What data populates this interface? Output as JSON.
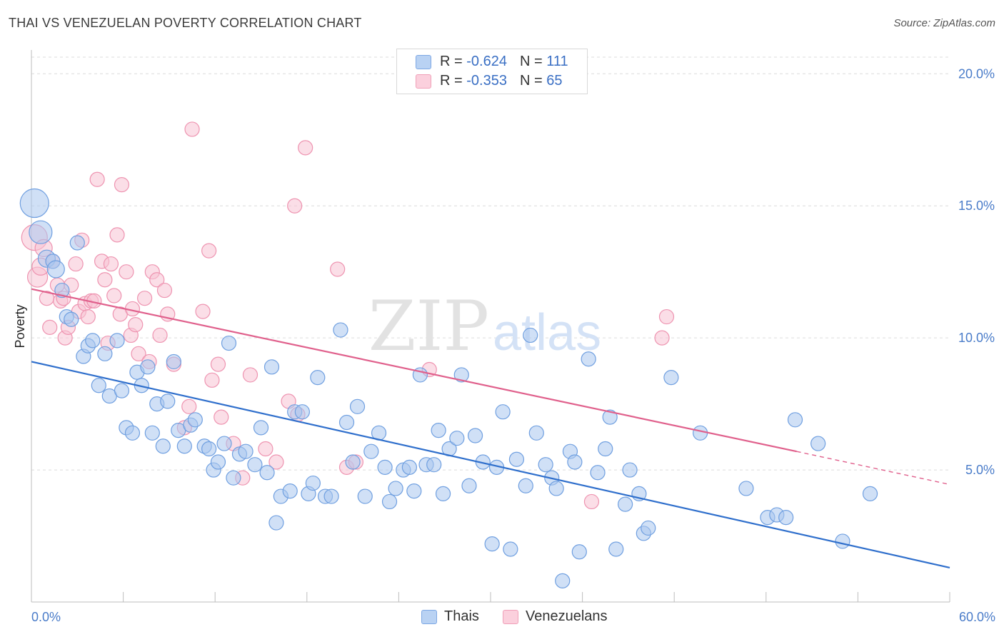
{
  "header": {
    "title": "THAI VS VENEZUELAN POVERTY CORRELATION CHART",
    "source": "Source: ZipAtlas.com"
  },
  "watermark": {
    "zip": "ZIP",
    "atlas": "atlas"
  },
  "legend": {
    "rows": [
      {
        "r_label": "R = ",
        "r_value": "-0.624",
        "n_label": "N = ",
        "n_value": "111",
        "color": "#8fb5e8"
      },
      {
        "r_label": "R = ",
        "r_value": "-0.353",
        "n_label": "N = ",
        "n_value": "65",
        "color": "#f4a8c0"
      }
    ]
  },
  "bottom_legend": {
    "thais": "Thais",
    "venezuelans": "Venezuelans"
  },
  "colors": {
    "thai_fill": "#a9c6ef",
    "thai_stroke": "#6f9fe0",
    "thai_line": "#2f6fcc",
    "ven_fill": "#f8c3d3",
    "ven_stroke": "#ee93b0",
    "ven_line": "#e0608c",
    "grid": "#dcdcdc",
    "tick_label": "#4a7cc9"
  },
  "chart_data": {
    "type": "scatter",
    "title": "THAI VS VENEZUELAN POVERTY CORRELATION CHART",
    "ylabel": "Poverty",
    "xlim": [
      0,
      60
    ],
    "ylim": [
      0,
      20.9
    ],
    "x_tick_labels": [
      {
        "value": 0,
        "label": "0.0%"
      },
      {
        "value": 60,
        "label": "60.0%"
      }
    ],
    "y_tick_labels": [
      {
        "value": 5,
        "label": "5.0%"
      },
      {
        "value": 10,
        "label": "10.0%"
      },
      {
        "value": 15,
        "label": "15.0%"
      },
      {
        "value": 20,
        "label": "20.0%"
      }
    ],
    "grid": true,
    "series": [
      {
        "name": "Thais",
        "trend": {
          "x": [
            0,
            60
          ],
          "y": [
            9.1,
            1.3
          ]
        },
        "points": [
          [
            0.2,
            15.1,
            1
          ],
          [
            0.6,
            14.0,
            0.8
          ],
          [
            1.0,
            13.0,
            0.6
          ],
          [
            1.4,
            12.9,
            0.5
          ],
          [
            1.6,
            12.6,
            0.6
          ],
          [
            2.0,
            11.8,
            0.5
          ],
          [
            2.3,
            10.8,
            0.5
          ],
          [
            2.6,
            10.7,
            0.5
          ],
          [
            3.0,
            13.6,
            0.5
          ],
          [
            3.4,
            9.3,
            0.5
          ],
          [
            3.7,
            9.7,
            0.5
          ],
          [
            4.0,
            9.9,
            0.5
          ],
          [
            4.4,
            8.2,
            0.5
          ],
          [
            4.8,
            9.4,
            0.5
          ],
          [
            5.1,
            7.8,
            0.5
          ],
          [
            5.6,
            9.9,
            0.5
          ],
          [
            5.9,
            8.0,
            0.5
          ],
          [
            6.2,
            6.6,
            0.5
          ],
          [
            6.6,
            6.4,
            0.5
          ],
          [
            6.9,
            8.7,
            0.5
          ],
          [
            7.2,
            8.2,
            0.5
          ],
          [
            7.6,
            8.9,
            0.5
          ],
          [
            7.9,
            6.4,
            0.5
          ],
          [
            8.2,
            7.5,
            0.5
          ],
          [
            8.6,
            5.9,
            0.5
          ],
          [
            8.9,
            7.6,
            0.5
          ],
          [
            9.3,
            9.1,
            0.5
          ],
          [
            9.6,
            6.5,
            0.5
          ],
          [
            10.0,
            5.9,
            0.5
          ],
          [
            10.4,
            6.7,
            0.5
          ],
          [
            10.7,
            6.9,
            0.5
          ],
          [
            11.3,
            5.9,
            0.5
          ],
          [
            11.6,
            5.8,
            0.5
          ],
          [
            11.9,
            5.0,
            0.5
          ],
          [
            12.2,
            5.3,
            0.5
          ],
          [
            12.6,
            6.0,
            0.5
          ],
          [
            12.9,
            9.8,
            0.5
          ],
          [
            13.2,
            4.7,
            0.5
          ],
          [
            13.6,
            5.6,
            0.5
          ],
          [
            14.0,
            5.7,
            0.5
          ],
          [
            14.6,
            5.2,
            0.5
          ],
          [
            15.0,
            6.6,
            0.5
          ],
          [
            15.4,
            4.9,
            0.5
          ],
          [
            15.7,
            8.9,
            0.5
          ],
          [
            16.0,
            3.0,
            0.5
          ],
          [
            16.3,
            4.0,
            0.5
          ],
          [
            16.9,
            4.2,
            0.5
          ],
          [
            17.2,
            7.2,
            0.5
          ],
          [
            17.7,
            7.2,
            0.5
          ],
          [
            18.1,
            4.1,
            0.5
          ],
          [
            18.4,
            4.5,
            0.5
          ],
          [
            18.7,
            8.5,
            0.5
          ],
          [
            19.2,
            4.0,
            0.5
          ],
          [
            19.6,
            4.0,
            0.5
          ],
          [
            20.2,
            10.3,
            0.5
          ],
          [
            20.6,
            6.8,
            0.5
          ],
          [
            21.0,
            5.3,
            0.5
          ],
          [
            21.3,
            7.4,
            0.5
          ],
          [
            21.8,
            4.0,
            0.5
          ],
          [
            22.2,
            5.7,
            0.5
          ],
          [
            22.7,
            6.4,
            0.5
          ],
          [
            23.1,
            5.1,
            0.5
          ],
          [
            23.4,
            3.8,
            0.5
          ],
          [
            23.8,
            4.3,
            0.5
          ],
          [
            24.3,
            5.0,
            0.5
          ],
          [
            24.7,
            5.1,
            0.5
          ],
          [
            25.0,
            4.2,
            0.5
          ],
          [
            25.4,
            8.6,
            0.5
          ],
          [
            25.8,
            5.2,
            0.5
          ],
          [
            26.3,
            5.2,
            0.5
          ],
          [
            26.6,
            6.5,
            0.5
          ],
          [
            26.9,
            4.1,
            0.5
          ],
          [
            27.3,
            5.8,
            0.5
          ],
          [
            27.8,
            6.2,
            0.5
          ],
          [
            28.1,
            8.6,
            0.5
          ],
          [
            28.6,
            4.4,
            0.5
          ],
          [
            29.0,
            6.3,
            0.5
          ],
          [
            29.5,
            5.3,
            0.5
          ],
          [
            30.1,
            2.2,
            0.5
          ],
          [
            30.4,
            5.1,
            0.5
          ],
          [
            30.8,
            7.2,
            0.5
          ],
          [
            31.3,
            2.0,
            0.5
          ],
          [
            31.7,
            5.4,
            0.5
          ],
          [
            32.3,
            4.4,
            0.5
          ],
          [
            32.6,
            10.1,
            0.5
          ],
          [
            33.0,
            6.4,
            0.5
          ],
          [
            33.6,
            5.2,
            0.5
          ],
          [
            34.0,
            4.7,
            0.5
          ],
          [
            34.3,
            4.3,
            0.5
          ],
          [
            34.7,
            0.8,
            0.5
          ],
          [
            35.2,
            5.7,
            0.5
          ],
          [
            35.5,
            5.3,
            0.5
          ],
          [
            35.8,
            1.9,
            0.5
          ],
          [
            36.4,
            9.2,
            0.5
          ],
          [
            37.0,
            4.9,
            0.5
          ],
          [
            37.5,
            5.8,
            0.5
          ],
          [
            37.8,
            7.0,
            0.5
          ],
          [
            38.2,
            2.0,
            0.5
          ],
          [
            38.8,
            3.7,
            0.5
          ],
          [
            39.1,
            5.0,
            0.5
          ],
          [
            39.7,
            4.1,
            0.5
          ],
          [
            40.0,
            2.6,
            0.5
          ],
          [
            40.3,
            2.8,
            0.5
          ],
          [
            41.8,
            8.5,
            0.5
          ],
          [
            43.7,
            6.4,
            0.5
          ],
          [
            46.7,
            4.3,
            0.5
          ],
          [
            48.1,
            3.2,
            0.5
          ],
          [
            48.7,
            3.3,
            0.5
          ],
          [
            49.3,
            3.2,
            0.5
          ],
          [
            49.9,
            6.9,
            0.5
          ],
          [
            51.4,
            6.0,
            0.5
          ],
          [
            53.0,
            2.3,
            0.5
          ],
          [
            54.8,
            4.1,
            0.5
          ]
        ]
      },
      {
        "name": "Venezuelans",
        "trend": {
          "x": [
            0,
            50
          ],
          "y": [
            11.85,
            5.7
          ]
        },
        "trend_dashed": {
          "x": [
            50,
            60
          ],
          "y": [
            5.7,
            4.45
          ]
        },
        "points": [
          [
            0.2,
            13.8,
            0.9
          ],
          [
            0.4,
            12.3,
            0.7
          ],
          [
            0.6,
            12.7,
            0.6
          ],
          [
            0.8,
            13.4,
            0.6
          ],
          [
            1.0,
            11.5,
            0.5
          ],
          [
            1.2,
            10.4,
            0.5
          ],
          [
            1.4,
            12.9,
            0.5
          ],
          [
            1.7,
            12.0,
            0.5
          ],
          [
            1.9,
            11.4,
            0.5
          ],
          [
            2.1,
            11.5,
            0.5
          ],
          [
            2.2,
            10.0,
            0.5
          ],
          [
            2.4,
            10.4,
            0.5
          ],
          [
            2.6,
            12.0,
            0.5
          ],
          [
            2.9,
            12.8,
            0.5
          ],
          [
            3.1,
            11.0,
            0.5
          ],
          [
            3.3,
            13.7,
            0.5
          ],
          [
            3.5,
            11.3,
            0.5
          ],
          [
            3.7,
            10.8,
            0.5
          ],
          [
            3.9,
            11.4,
            0.5
          ],
          [
            4.1,
            11.4,
            0.5
          ],
          [
            4.3,
            16.0,
            0.5
          ],
          [
            4.6,
            12.9,
            0.5
          ],
          [
            4.8,
            12.2,
            0.5
          ],
          [
            5.0,
            9.8,
            0.5
          ],
          [
            5.2,
            12.8,
            0.5
          ],
          [
            5.4,
            11.6,
            0.5
          ],
          [
            5.6,
            13.9,
            0.5
          ],
          [
            5.8,
            10.9,
            0.5
          ],
          [
            5.9,
            15.8,
            0.5
          ],
          [
            6.2,
            12.5,
            0.5
          ],
          [
            6.5,
            10.1,
            0.5
          ],
          [
            6.6,
            11.1,
            0.5
          ],
          [
            6.8,
            10.5,
            0.5
          ],
          [
            7.0,
            9.4,
            0.5
          ],
          [
            7.4,
            11.5,
            0.5
          ],
          [
            7.7,
            9.1,
            0.5
          ],
          [
            7.9,
            12.5,
            0.5
          ],
          [
            8.2,
            12.2,
            0.5
          ],
          [
            8.4,
            10.1,
            0.5
          ],
          [
            8.7,
            11.8,
            0.5
          ],
          [
            8.9,
            10.9,
            0.5
          ],
          [
            9.3,
            9.0,
            0.5
          ],
          [
            10.0,
            6.6,
            0.5
          ],
          [
            10.3,
            7.4,
            0.5
          ],
          [
            10.5,
            17.9,
            0.5
          ],
          [
            11.2,
            11.0,
            0.5
          ],
          [
            11.6,
            13.3,
            0.5
          ],
          [
            11.8,
            8.4,
            0.5
          ],
          [
            12.2,
            9.0,
            0.5
          ],
          [
            12.4,
            7.0,
            0.5
          ],
          [
            13.2,
            6.0,
            0.5
          ],
          [
            13.8,
            4.7,
            0.5
          ],
          [
            14.3,
            8.6,
            0.5
          ],
          [
            15.3,
            5.8,
            0.5
          ],
          [
            16.0,
            5.3,
            0.5
          ],
          [
            16.8,
            7.6,
            0.5
          ],
          [
            17.2,
            15.0,
            0.5
          ],
          [
            17.4,
            7.1,
            0.5
          ],
          [
            17.9,
            17.2,
            0.5
          ],
          [
            20.0,
            12.6,
            0.5
          ],
          [
            20.6,
            5.1,
            0.5
          ],
          [
            21.2,
            5.3,
            0.5
          ],
          [
            26.0,
            8.8,
            0.5
          ],
          [
            36.6,
            3.8,
            0.5
          ],
          [
            41.2,
            10.0,
            0.5
          ],
          [
            41.5,
            10.8,
            0.5
          ]
        ]
      }
    ]
  }
}
